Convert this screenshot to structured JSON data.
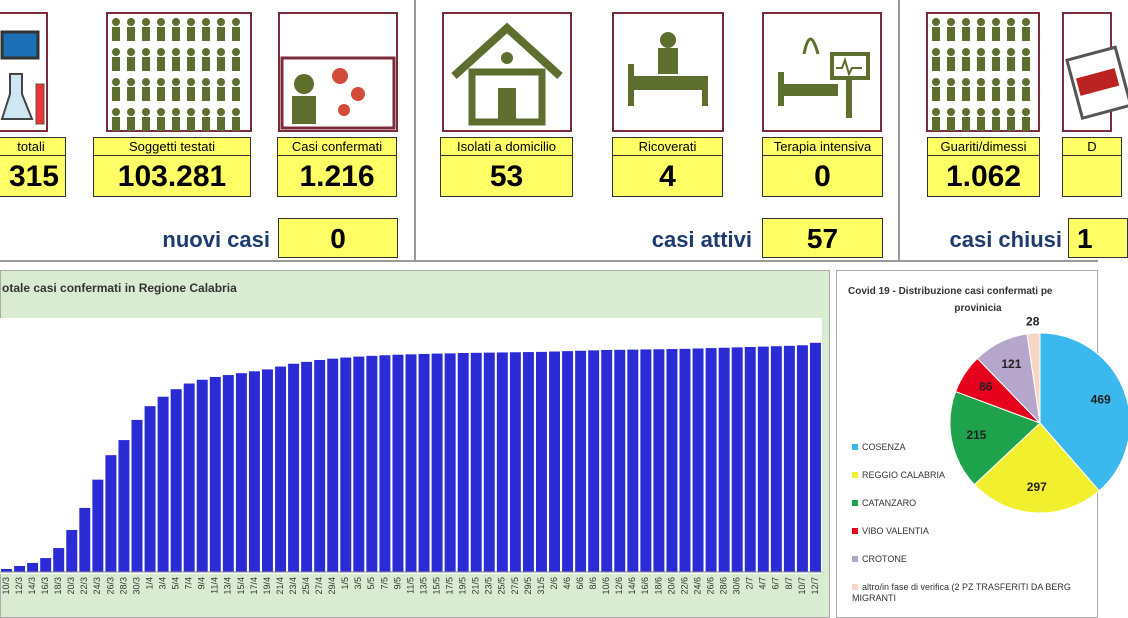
{
  "cards": [
    {
      "label": "totali",
      "value": "315"
    },
    {
      "label": "Soggetti testati",
      "value": "103.281"
    },
    {
      "label": "Casi confermati",
      "value": "1.216"
    },
    {
      "label": "Isolati a domicilio",
      "value": "53"
    },
    {
      "label": "Ricoverati",
      "value": "4"
    },
    {
      "label": "Terapia intensiva",
      "value": "0"
    },
    {
      "label": "Guariti/dimessi",
      "value": "1.062"
    },
    {
      "label": "D"
    }
  ],
  "summaries": [
    {
      "label": "nuovi casi",
      "value": "0"
    },
    {
      "label": "casi attivi",
      "value": "57"
    },
    {
      "label": "casi chiusi",
      "value": "1"
    }
  ],
  "chart_data": [
    {
      "type": "bar",
      "title": "otale casi confermati in Regione Calabria",
      "color": "#2b2bd6",
      "ylim": [
        0,
        1300
      ],
      "categories": [
        "10/3",
        "12/3",
        "14/3",
        "16/3",
        "18/3",
        "20/3",
        "22/3",
        "24/3",
        "26/3",
        "28/3",
        "30/3",
        "1/4",
        "3/4",
        "5/4",
        "7/4",
        "9/4",
        "11/4",
        "13/4",
        "15/4",
        "17/4",
        "19/4",
        "21/4",
        "23/4",
        "25/4",
        "27/4",
        "29/4",
        "1/5",
        "3/5",
        "5/5",
        "7/5",
        "9/5",
        "11/5",
        "13/5",
        "15/5",
        "17/5",
        "19/5",
        "21/5",
        "23/5",
        "25/5",
        "27/5",
        "29/5",
        "31/5",
        "2/6",
        "4/6",
        "6/6",
        "8/6",
        "10/6",
        "12/6",
        "14/6",
        "16/6",
        "18/6",
        "20/6",
        "22/6",
        "24/6",
        "26/6",
        "28/6",
        "30/6",
        "2/7",
        "4/7",
        "6/7",
        "8/7",
        "10/7",
        "12/7"
      ],
      "values": [
        16,
        32,
        48,
        74,
        127,
        223,
        340,
        490,
        620,
        700,
        807,
        880,
        930,
        970,
        1000,
        1020,
        1035,
        1045,
        1055,
        1065,
        1075,
        1090,
        1105,
        1115,
        1125,
        1132,
        1138,
        1143,
        1147,
        1150,
        1153,
        1155,
        1157,
        1159,
        1160,
        1162,
        1163,
        1164,
        1165,
        1166,
        1167,
        1168,
        1170,
        1172,
        1174,
        1176,
        1178,
        1179,
        1180,
        1181,
        1182,
        1183,
        1184,
        1186,
        1188,
        1190,
        1192,
        1194,
        1196,
        1198,
        1200,
        1203,
        1216
      ]
    },
    {
      "type": "pie",
      "title": "Covid 19 - Distribuzione casi confermati pe",
      "subtitle": "provinicia",
      "categories": [
        "COSENZA",
        "REGGIO CALABRIA",
        "CATANZARO",
        "VIBO VALENTIA",
        "CROTONE",
        "altro/in fase di verifica (2 PZ TRASFERITI DA BERG MIGRANTI"
      ],
      "values": [
        469,
        297,
        215,
        86,
        121,
        28
      ],
      "colors": [
        "#3bb8ee",
        "#f2f02e",
        "#1ea34c",
        "#e5001b",
        "#b6a6cc",
        "#f7d7c4"
      ]
    }
  ]
}
